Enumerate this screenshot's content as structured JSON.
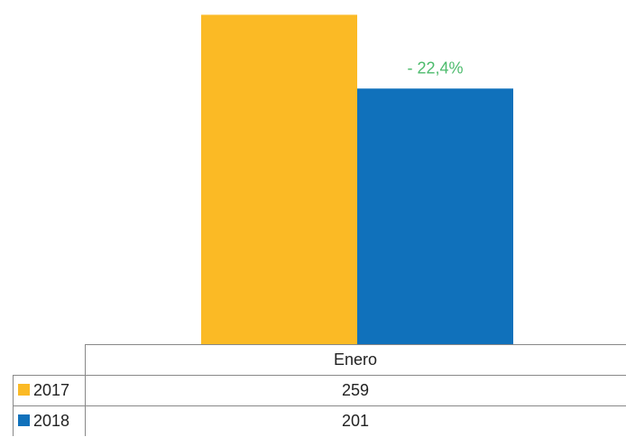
{
  "chart_data": {
    "type": "bar",
    "categories": [
      "Enero"
    ],
    "series": [
      {
        "name": "2017",
        "values": [
          259
        ],
        "color": "#FBBA25"
      },
      {
        "name": "2018",
        "values": [
          201
        ],
        "color": "#1071BB"
      }
    ],
    "annotation": {
      "text": "- 22,4%",
      "color": "#4CBB6C"
    },
    "ylim": [
      0,
      260
    ],
    "grid": false,
    "legend": "data-table",
    "table_values": [
      [
        "259"
      ],
      [
        "201"
      ]
    ]
  }
}
